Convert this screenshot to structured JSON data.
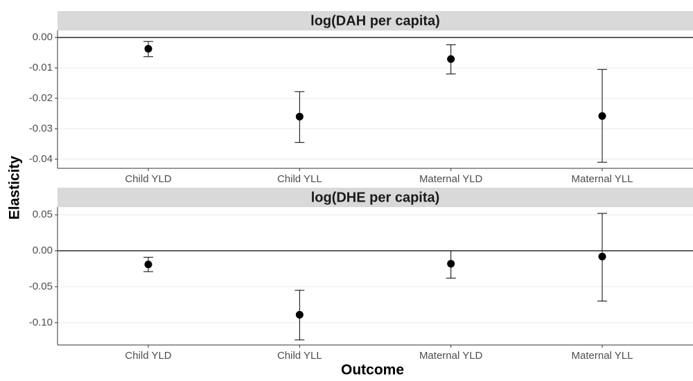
{
  "chart_data": [
    {
      "type": "errorbar",
      "title": "log(DAH per capita)",
      "y_label": "Elasticity",
      "categories": [
        "Child YLD",
        "Child YLL",
        "Maternal YLD",
        "Maternal YLL"
      ],
      "values": [
        -0.0037,
        -0.026,
        -0.0071,
        -0.0258
      ],
      "lower": [
        -0.0063,
        -0.0345,
        -0.012,
        -0.041
      ],
      "upper": [
        -0.0013,
        -0.0178,
        -0.0024,
        -0.0105
      ],
      "ylim": [
        -0.043,
        0.0023
      ],
      "yticks": [
        {
          "value": 0,
          "label": "0.00"
        },
        {
          "value": -0.01,
          "label": "-0.01"
        },
        {
          "value": -0.02,
          "label": "-0.02"
        },
        {
          "value": -0.03,
          "label": "-0.03"
        },
        {
          "value": -0.04,
          "label": "-0.04"
        }
      ],
      "hline": 0,
      "grid": true,
      "color": "#000000"
    },
    {
      "type": "errorbar",
      "title": "log(DHE per capita)",
      "x_label": "Outcome",
      "categories": [
        "Child YLD",
        "Child YLL",
        "Maternal YLD",
        "Maternal YLL"
      ],
      "values": [
        -0.019,
        -0.089,
        -0.018,
        -0.008
      ],
      "lower": [
        -0.029,
        -0.124,
        -0.038,
        -0.07
      ],
      "upper": [
        -0.009,
        -0.055,
        0,
        0.052
      ],
      "ylim": [
        -0.131,
        0.0607
      ],
      "yticks": [
        {
          "value": 0.05,
          "label": "0.05"
        },
        {
          "value": 0,
          "label": "0.00"
        },
        {
          "value": -0.05,
          "label": "-0.05"
        },
        {
          "value": -0.1,
          "label": "-0.10"
        }
      ],
      "hline": 0,
      "grid": true,
      "color": "#000000"
    }
  ]
}
